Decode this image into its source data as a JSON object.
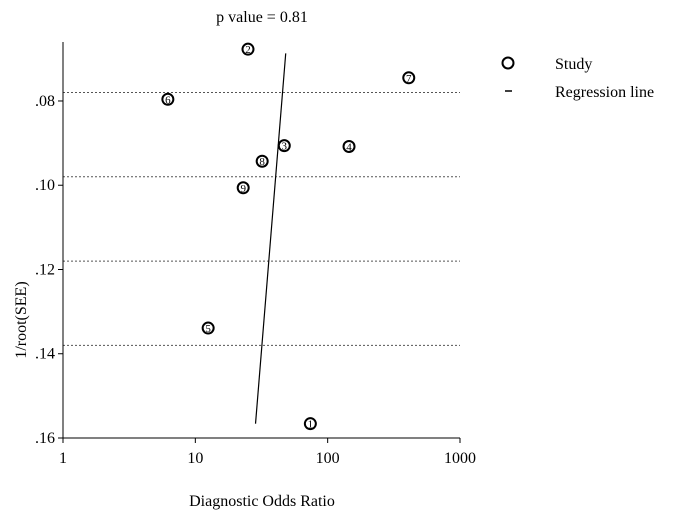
{
  "chart_data": {
    "type": "scatter",
    "title": "p value = 0.81",
    "xlabel": "Diagnostic Odds Ratio",
    "ylabel": "1/root(SEE)",
    "x_scale": "log",
    "xlim": [
      1,
      1000
    ],
    "ylim": [
      0.16,
      0.066
    ],
    "y_axis_inverted": true,
    "x_ticks": [
      1,
      10,
      100,
      1000
    ],
    "x_tick_labels": [
      "1",
      "10",
      "100",
      "1000"
    ],
    "y_ticks": [
      0.08,
      0.1,
      0.12,
      0.14,
      0.16
    ],
    "y_tick_labels": [
      ".08",
      ".10",
      ".12",
      ".14",
      ".16"
    ],
    "grid": "horizontal dotted reference lines",
    "legend_position": "right",
    "legend": [
      {
        "label": "Study",
        "marker": "circle"
      },
      {
        "label": "Regression line",
        "marker": "dash"
      }
    ],
    "series": [
      {
        "name": "Study",
        "points": [
          {
            "id": "1",
            "x": 74,
            "y": 0.1566
          },
          {
            "id": "2",
            "x": 25,
            "y": 0.0677
          },
          {
            "id": "3",
            "x": 47,
            "y": 0.0906
          },
          {
            "id": "4",
            "x": 145,
            "y": 0.0908
          },
          {
            "id": "5",
            "x": 12.5,
            "y": 0.1339
          },
          {
            "id": "6",
            "x": 6.2,
            "y": 0.0796
          },
          {
            "id": "7",
            "x": 410,
            "y": 0.0745
          },
          {
            "id": "8",
            "x": 32,
            "y": 0.0943
          },
          {
            "id": "9",
            "x": 23,
            "y": 0.1006
          }
        ]
      },
      {
        "name": "Regression line",
        "type": "line",
        "points": [
          {
            "x": 28.5,
            "y": 0.1566
          },
          {
            "x": 48.2,
            "y": 0.0687
          }
        ]
      }
    ],
    "colors": {
      "marker": "#000000",
      "line": "#000000",
      "grid": "#555555"
    }
  }
}
